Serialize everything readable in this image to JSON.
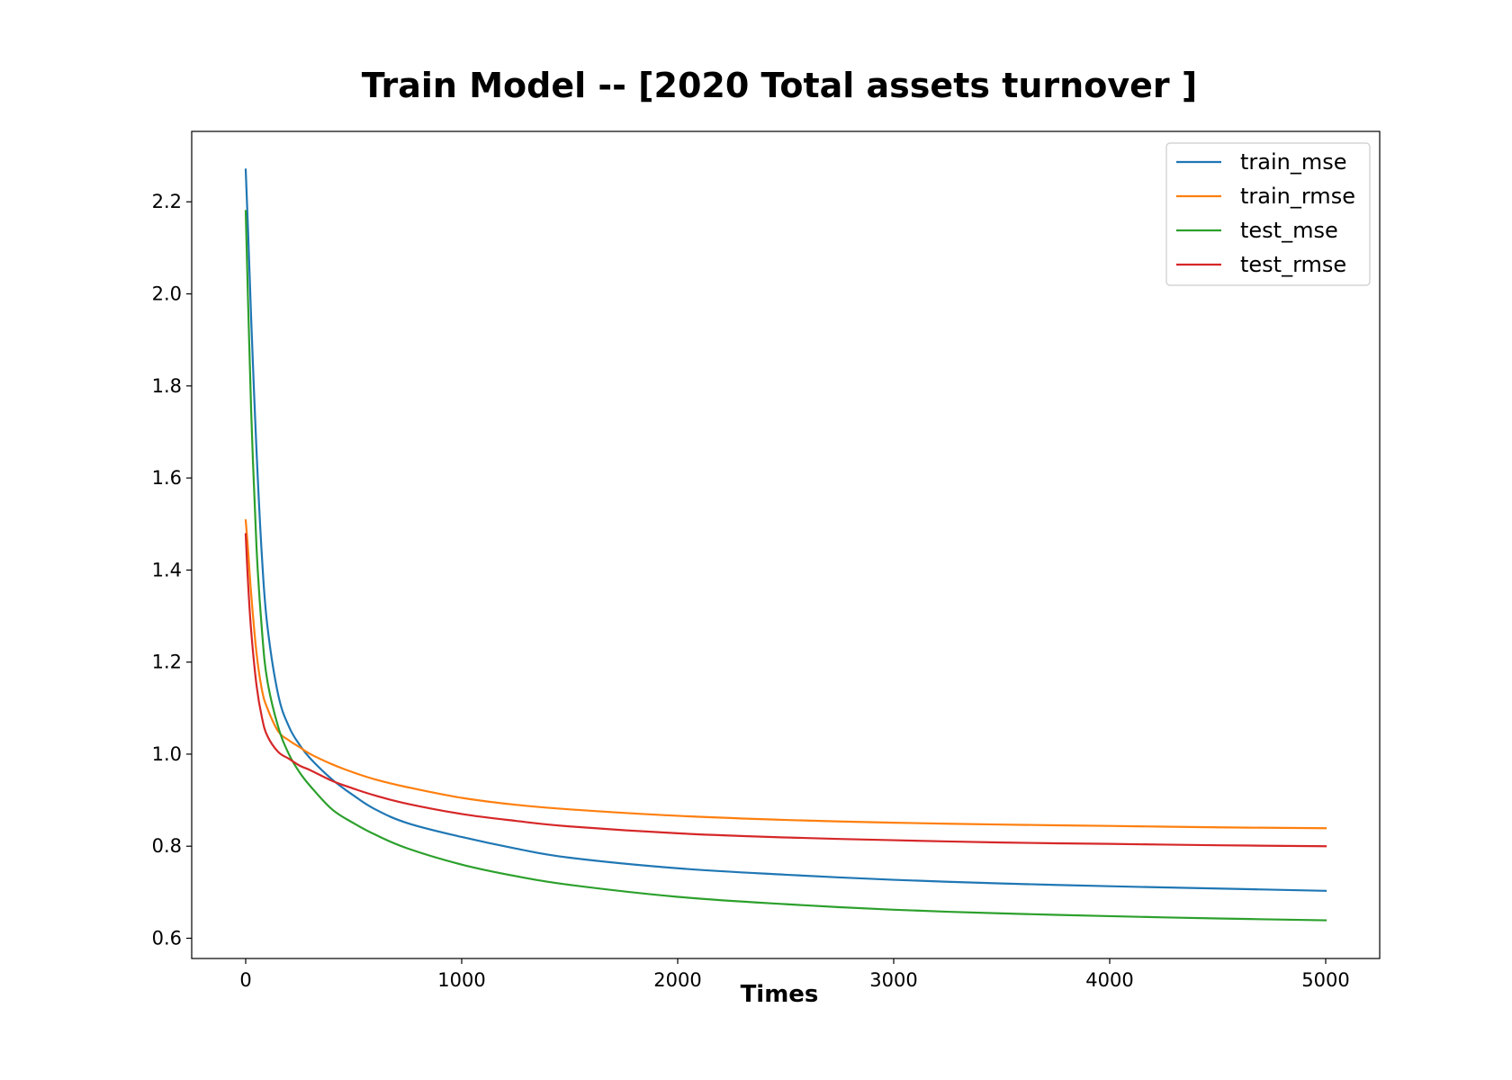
{
  "chart_data": {
    "type": "line",
    "title": "Train Model -- [2020 Total assets turnover ]",
    "xlabel": "Times",
    "ylabel": "",
    "xlim": [
      -250,
      5250
    ],
    "ylim": [
      0.556,
      2.353
    ],
    "xticks": [
      0,
      1000,
      2000,
      3000,
      4000,
      5000
    ],
    "yticks": [
      0.6,
      0.8,
      1.0,
      1.2,
      1.4,
      1.6,
      1.8,
      2.0,
      2.2
    ],
    "ytick_labels": [
      "0.6",
      "0.8",
      "1.0",
      "1.2",
      "1.4",
      "1.6",
      "1.8",
      "2.0",
      "2.2"
    ],
    "grid": false,
    "legend_position": "top-right",
    "x": [
      0,
      10,
      25,
      50,
      75,
      100,
      150,
      200,
      250,
      300,
      400,
      500,
      600,
      750,
      1000,
      1250,
      1500,
      2000,
      2500,
      3000,
      3500,
      4000,
      4500,
      5000
    ],
    "series": [
      {
        "name": "train_mse",
        "color": "#1f77b4",
        "values": [
          2.27,
          2.15,
          1.95,
          1.66,
          1.43,
          1.28,
          1.13,
          1.06,
          1.02,
          0.99,
          0.945,
          0.91,
          0.88,
          0.85,
          0.82,
          0.795,
          0.775,
          0.752,
          0.738,
          0.727,
          0.719,
          0.713,
          0.708,
          0.703
        ]
      },
      {
        "name": "train_rmse",
        "color": "#ff7f0e",
        "values": [
          1.508,
          1.45,
          1.35,
          1.22,
          1.14,
          1.1,
          1.05,
          1.03,
          1.015,
          1.0,
          0.978,
          0.96,
          0.945,
          0.928,
          0.905,
          0.89,
          0.88,
          0.866,
          0.857,
          0.851,
          0.847,
          0.844,
          0.841,
          0.839
        ]
      },
      {
        "name": "test_mse",
        "color": "#2ca02c",
        "values": [
          2.18,
          2.0,
          1.75,
          1.45,
          1.27,
          1.16,
          1.06,
          1.0,
          0.96,
          0.93,
          0.88,
          0.85,
          0.825,
          0.795,
          0.76,
          0.735,
          0.716,
          0.69,
          0.674,
          0.662,
          0.654,
          0.648,
          0.643,
          0.639
        ]
      },
      {
        "name": "test_rmse",
        "color": "#d62728",
        "values": [
          1.478,
          1.38,
          1.27,
          1.15,
          1.08,
          1.04,
          1.005,
          0.99,
          0.975,
          0.965,
          0.942,
          0.925,
          0.91,
          0.892,
          0.87,
          0.855,
          0.843,
          0.828,
          0.819,
          0.813,
          0.808,
          0.805,
          0.802,
          0.8
        ]
      }
    ]
  }
}
